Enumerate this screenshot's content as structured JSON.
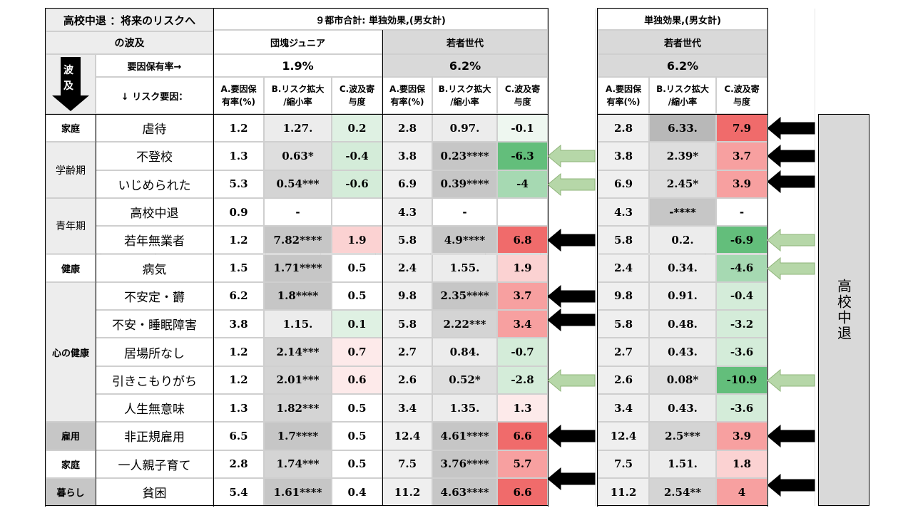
{
  "title_line1": "高校中退 ：将来のリスクへ",
  "title_line2": "の波及",
  "wave_label": "波",
  "wave_label2": "及",
  "factor_rate_label": "要因保有率→",
  "risk_factor_label": "↓ リスク要因：",
  "panel_left_title": "９都市合計: 単独効果,(男女計)",
  "panel_right_title": "単独効果,(男女計)",
  "group_dankai": "団塊ジュニア",
  "group_young": "若者世代",
  "group_young2": "若者世代",
  "rate_dankai": "1.9%",
  "rate_young": "6.2%",
  "rate_young2": "6.2%",
  "col_a": [
    "A.要因保",
    "有率(%)"
  ],
  "col_b": [
    "B.リスク拡大",
    "/縮小率"
  ],
  "col_c": [
    "C.波及寄",
    "与度"
  ],
  "side_label": "高校中退",
  "categories": [
    {
      "name": "家庭"
    },
    {
      "name": "学齢期"
    },
    {
      "name": "青年期"
    },
    {
      "name": "健康"
    },
    {
      "name": "心の健康"
    },
    {
      "name": "雇用"
    },
    {
      "name": "家庭"
    },
    {
      "name": "暮らし"
    }
  ],
  "rows": [
    {
      "factor": "虐待",
      "d": [
        "1.2",
        "1.27.",
        "0.2"
      ],
      "y": [
        "2.8",
        "0.97.",
        "-0.1"
      ],
      "z": [
        "2.8",
        "6.33.",
        "7.9"
      ]
    },
    {
      "factor": "不登校",
      "d": [
        "1.3",
        "0.63*",
        "-0.4"
      ],
      "y": [
        "3.8",
        "0.23****",
        "-6.3"
      ],
      "z": [
        "3.8",
        "2.39*",
        "3.7"
      ]
    },
    {
      "factor": "いじめられた",
      "d": [
        "5.3",
        "0.54***",
        "-0.6"
      ],
      "y": [
        "6.9",
        "0.39****",
        "-4"
      ],
      "z": [
        "6.9",
        "2.45*",
        "3.9"
      ]
    },
    {
      "factor": "高校中退",
      "d": [
        "0.9",
        "-",
        ""
      ],
      "y": [
        "4.3",
        "-",
        ""
      ],
      "z": [
        "4.3",
        "-****",
        "-"
      ]
    },
    {
      "factor": "若年無業者",
      "d": [
        "1.2",
        "7.82****",
        "1.9"
      ],
      "y": [
        "5.8",
        "4.9****",
        "6.8"
      ],
      "z": [
        "5.8",
        "0.2.",
        "-6.9"
      ]
    },
    {
      "factor": "病気",
      "d": [
        "1.5",
        "1.71****",
        "0.5"
      ],
      "y": [
        "2.4",
        "1.55.",
        "1.9"
      ],
      "z": [
        "2.4",
        "0.34.",
        "-4.6"
      ]
    },
    {
      "factor": "不安定・欝",
      "d": [
        "6.2",
        "1.8****",
        "0.5"
      ],
      "y": [
        "9.8",
        "2.35****",
        "3.7"
      ],
      "z": [
        "9.8",
        "0.91.",
        "-0.4"
      ]
    },
    {
      "factor": "不安・睡眠障害",
      "d": [
        "3.8",
        "1.15.",
        "0.1"
      ],
      "y": [
        "5.8",
        "2.22***",
        "3.4"
      ],
      "z": [
        "5.8",
        "0.48.",
        "-3.2"
      ]
    },
    {
      "factor": "居場所なし",
      "d": [
        "1.2",
        "2.14***",
        "0.7"
      ],
      "y": [
        "2.7",
        "0.84.",
        "-0.7"
      ],
      "z": [
        "2.7",
        "0.43.",
        "-3.6"
      ]
    },
    {
      "factor": "引きこもりがち",
      "d": [
        "1.2",
        "2.01***",
        "0.6"
      ],
      "y": [
        "2.6",
        "0.52*",
        "-2.8"
      ],
      "z": [
        "2.6",
        "0.08*",
        "-10.9"
      ]
    },
    {
      "factor": "人生無意味",
      "d": [
        "1.3",
        "1.82***",
        "0.5"
      ],
      "y": [
        "3.4",
        "1.35.",
        "1.3"
      ],
      "z": [
        "3.4",
        "0.43.",
        "-3.6"
      ]
    },
    {
      "factor": "非正規雇用",
      "d": [
        "6.5",
        "1.7****",
        "0.5"
      ],
      "y": [
        "12.4",
        "4.61****",
        "6.6"
      ],
      "z": [
        "12.4",
        "2.5***",
        "3.9"
      ]
    },
    {
      "factor": "一人親子育て",
      "d": [
        "2.8",
        "1.74***",
        "0.5"
      ],
      "y": [
        "7.5",
        "3.76****",
        "5.7"
      ],
      "z": [
        "7.5",
        "1.51.",
        "1.8"
      ]
    },
    {
      "factor": "貧困",
      "d": [
        "5.4",
        "1.61****",
        "0.4"
      ],
      "y": [
        "11.2",
        "4.63****",
        "6.6"
      ],
      "z": [
        "11.2",
        "2.54**",
        "4"
      ]
    }
  ],
  "colors": {
    "red_strong": "#f06b6b",
    "red_mid": "#f7a0a0",
    "red_light": "#fbd2d2",
    "green_strong": "#63be7b",
    "green_mid": "#a6d9b2",
    "green_light": "#d4ecd9",
    "arrow_green": "#b6d7a8",
    "arrow_black": "#000000"
  }
}
